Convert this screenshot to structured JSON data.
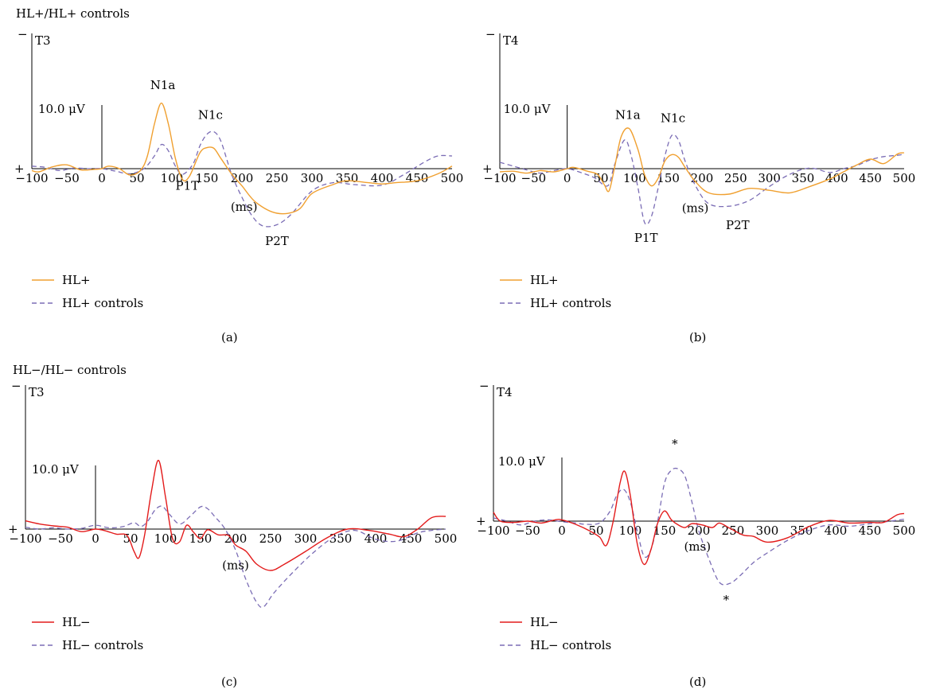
{
  "groups": [
    {
      "title": "HL+/HL+ controls"
    },
    {
      "title": "HL−/HL− controls"
    }
  ],
  "colors": {
    "hl_plus": "#f0a030",
    "hl_minus": "#e31b1b",
    "controls": "#7b6db5",
    "axis": "#000000"
  },
  "polarity": {
    "neg": "−",
    "pos": "+"
  },
  "chart_data": [
    {
      "type": "line",
      "panel_label": "(a)",
      "channel": "T3",
      "scale_label": "10.0 μV",
      "scale_value": 10,
      "x_unit": "(ms)",
      "xlim": [
        -100,
        500
      ],
      "ylim": [
        -10.5,
        24
      ],
      "y_direction": "negative up",
      "x_ticks": [
        -100,
        -50,
        0,
        50,
        100,
        150,
        200,
        250,
        300,
        350,
        400,
        450,
        500
      ],
      "x_tick_labels": [
        "−100",
        "−50",
        "0",
        "50",
        "100",
        "150",
        "200",
        "250",
        "300",
        "350",
        "400",
        "450",
        "500"
      ],
      "legend": {
        "placement": "bottom-left"
      },
      "series": [
        {
          "name": "HL+",
          "style": "solid",
          "x": [
            -100,
            -90,
            -70,
            -50,
            -30,
            -10,
            0,
            10,
            25,
            40,
            55,
            65,
            75,
            85,
            95,
            105,
            115,
            125,
            140,
            150,
            160,
            170,
            185,
            200,
            220,
            250,
            280,
            300,
            330,
            350,
            380,
            400,
            420,
            450,
            480,
            500
          ],
          "y": [
            -0.3,
            -0.5,
            0.3,
            0.6,
            -0.2,
            -0.1,
            0,
            0.4,
            0,
            -1,
            -0.3,
            2,
            7,
            10.3,
            7,
            1.6,
            -1.7,
            -1.2,
            2.5,
            3.3,
            3.2,
            1.6,
            -0.8,
            -2.7,
            -5.3,
            -7,
            -6.5,
            -3.9,
            -2.5,
            -1.9,
            -2.2,
            -2.4,
            -2.2,
            -1.9,
            -0.8,
            0.4
          ]
        },
        {
          "name": "HL+ controls",
          "style": "dashed",
          "x": [
            -100,
            -80,
            -60,
            -40,
            -20,
            0,
            20,
            40,
            60,
            75,
            85,
            95,
            105,
            115,
            130,
            140,
            150,
            160,
            170,
            185,
            200,
            215,
            230,
            250,
            270,
            300,
            330,
            360,
            400,
            430,
            460,
            480,
            500
          ],
          "y": [
            0.4,
            0.2,
            -0.3,
            0.1,
            0,
            0,
            -0.4,
            -0.8,
            0,
            2,
            3.8,
            2.8,
            0.4,
            -0.9,
            0.7,
            3.6,
            5.4,
            5.8,
            4.3,
            -0.8,
            -4.5,
            -7.5,
            -9,
            -8.8,
            -7.2,
            -3.5,
            -2.2,
            -2.5,
            -2.6,
            -1,
            1,
            2,
            2
          ]
        }
      ],
      "annotations": [
        {
          "text": "N1a",
          "x": 87,
          "y": 12.5
        },
        {
          "text": "N1c",
          "x": 155,
          "y": 7.8
        },
        {
          "text": "P1T",
          "x": 122,
          "y": -3.3
        },
        {
          "text": "(ms)",
          "x": 203,
          "y": -6.6
        },
        {
          "text": "P2T",
          "x": 250,
          "y": -12
        }
      ]
    },
    {
      "type": "line",
      "panel_label": "(b)",
      "channel": "T4",
      "scale_label": "10.0 μV",
      "scale_value": 10,
      "x_unit": "(ms)",
      "xlim": [
        -100,
        500
      ],
      "ylim": [
        -10.5,
        24
      ],
      "y_direction": "negative up",
      "x_ticks": [
        -100,
        -50,
        0,
        50,
        100,
        150,
        200,
        250,
        300,
        350,
        400,
        450,
        500
      ],
      "x_tick_labels": [
        "−100",
        "−50",
        "0",
        "50",
        "100",
        "150",
        "200",
        "250",
        "300",
        "350",
        "400",
        "450",
        "500"
      ],
      "legend": {
        "placement": "bottom-left"
      },
      "series": [
        {
          "name": "HL+",
          "style": "solid",
          "x": [
            -100,
            -80,
            -60,
            -40,
            -20,
            0,
            10,
            30,
            45,
            55,
            62,
            70,
            80,
            92,
            105,
            115,
            125,
            135,
            145,
            155,
            165,
            175,
            190,
            210,
            240,
            270,
            300,
            330,
            360,
            390,
            410,
            430,
            450,
            470,
            490,
            500
          ],
          "y": [
            -0.5,
            -0.4,
            -0.7,
            -0.3,
            -0.5,
            0,
            0.2,
            -0.4,
            -0.9,
            -2.5,
            -3.5,
            0,
            5,
            6.3,
            3,
            -1,
            -2.7,
            -1.5,
            1.2,
            2.2,
            1.8,
            0.2,
            -2,
            -3.8,
            -4,
            -3.1,
            -3.4,
            -3.8,
            -2.8,
            -1.6,
            -0.5,
            0.6,
            1.5,
            0.8,
            2.3,
            2.5
          ]
        },
        {
          "name": "HL+ controls",
          "style": "dashed",
          "x": [
            -100,
            -80,
            -60,
            -40,
            -20,
            0,
            20,
            40,
            60,
            70,
            85,
            95,
            105,
            115,
            125,
            135,
            145,
            155,
            165,
            175,
            190,
            210,
            240,
            270,
            300,
            330,
            360,
            390,
            410,
            430,
            450,
            470,
            490,
            500
          ],
          "y": [
            1,
            0.4,
            -0.2,
            -0.7,
            -0.3,
            0,
            -0.6,
            -1.4,
            -2.7,
            0.5,
            4.5,
            2,
            -3,
            -8.5,
            -7.5,
            -3,
            2,
            5.2,
            4.5,
            1.2,
            -2.6,
            -5.5,
            -5.9,
            -5,
            -2.8,
            -0.9,
            0.1,
            -0.6,
            0,
            0.5,
            1.4,
            1.9,
            2.1,
            2.3
          ]
        }
      ],
      "annotations": [
        {
          "text": "N1a",
          "x": 90,
          "y": 7.8
        },
        {
          "text": "N1c",
          "x": 157,
          "y": 7.3
        },
        {
          "text": "P1T",
          "x": 117,
          "y": -11.5
        },
        {
          "text": "(ms)",
          "x": 190,
          "y": -6.8
        },
        {
          "text": "P2T",
          "x": 253,
          "y": -9.5
        }
      ]
    },
    {
      "type": "line",
      "panel_label": "(c)",
      "channel": "T3",
      "scale_label": "10.0 μV",
      "scale_value": 10,
      "x_unit": "(ms)",
      "xlim": [
        -100,
        500
      ],
      "ylim": [
        -16,
        19.5
      ],
      "y_direction": "negative up",
      "x_ticks": [
        -100,
        -50,
        0,
        50,
        100,
        150,
        200,
        250,
        300,
        350,
        400,
        450,
        500
      ],
      "x_tick_labels": [
        "−100",
        "−50",
        "0",
        "50",
        "100",
        "150",
        "200",
        "250",
        "300",
        "350",
        "400",
        "450",
        "500"
      ],
      "legend": {
        "placement": "bottom-left"
      },
      "series": [
        {
          "name": "HL−",
          "style": "solid",
          "x": [
            -100,
            -80,
            -60,
            -40,
            -20,
            0,
            15,
            30,
            45,
            55,
            62,
            70,
            80,
            90,
            100,
            110,
            120,
            130,
            140,
            150,
            160,
            175,
            190,
            200,
            215,
            230,
            250,
            270,
            300,
            330,
            360,
            390,
            420,
            440,
            460,
            480,
            500
          ],
          "y": [
            1.3,
            0.8,
            0.5,
            0.3,
            -0.4,
            0,
            -0.3,
            -0.8,
            -1,
            -3.5,
            -4.5,
            -1,
            6,
            10.8,
            5,
            -1.5,
            -2,
            0.6,
            -0.5,
            -1.5,
            -0.1,
            -0.9,
            -1,
            -2.5,
            -3.5,
            -5.5,
            -6.5,
            -5.5,
            -3.5,
            -1.4,
            0,
            -0.2,
            -0.8,
            -1.2,
            0,
            1.8,
            2
          ]
        },
        {
          "name": "HL− controls",
          "style": "dashed",
          "x": [
            -100,
            -80,
            -60,
            -40,
            -20,
            0,
            20,
            40,
            55,
            65,
            75,
            85,
            95,
            105,
            120,
            135,
            150,
            160,
            170,
            185,
            200,
            215,
            230,
            240,
            255,
            280,
            310,
            340,
            370,
            400,
            430,
            460,
            480,
            500
          ],
          "y": [
            0.3,
            0,
            0.2,
            0,
            0.1,
            0.6,
            0.2,
            0.4,
            1,
            0.4,
            1.3,
            3,
            3.6,
            2.4,
            0.8,
            2,
            3.5,
            3.2,
            2,
            0,
            -3.3,
            -8,
            -11.5,
            -12.2,
            -10,
            -7,
            -3.8,
            -1.3,
            -0.2,
            -1.6,
            -1.9,
            -0.6,
            -0.2,
            0
          ]
        }
      ],
      "annotations": [
        {
          "text": "(ms)",
          "x": 200,
          "y": -6.3
        }
      ]
    },
    {
      "type": "line",
      "panel_label": "(d)",
      "channel": "T4",
      "scale_label": "10.0 μV",
      "scale_value": 10,
      "x_unit": "(ms)",
      "xlim": [
        -100,
        500
      ],
      "ylim": [
        -16,
        19.5
      ],
      "y_direction": "negative up",
      "x_ticks": [
        -100,
        -50,
        0,
        50,
        100,
        150,
        200,
        250,
        300,
        350,
        400,
        450,
        500
      ],
      "x_tick_labels": [
        "−100",
        "−50",
        "0",
        "50",
        "100",
        "150",
        "200",
        "250",
        "300",
        "350",
        "400",
        "450",
        "500"
      ],
      "legend": {
        "placement": "bottom-left"
      },
      "series": [
        {
          "name": "HL−",
          "style": "solid",
          "x": [
            -100,
            -90,
            -70,
            -50,
            -30,
            -10,
            0,
            20,
            40,
            55,
            65,
            75,
            85,
            92,
            100,
            110,
            120,
            130,
            140,
            150,
            160,
            170,
            180,
            190,
            205,
            220,
            230,
            245,
            265,
            280,
            300,
            330,
            360,
            390,
            420,
            450,
            470,
            490,
            500
          ],
          "y": [
            1.4,
            0,
            -0.2,
            0,
            -0.3,
            0.2,
            0.2,
            -0.5,
            -1.5,
            -2.5,
            -3.8,
            0,
            6,
            7.8,
            4,
            -3.5,
            -6.8,
            -4.5,
            -0.3,
            1.6,
            0.2,
            -0.6,
            -1,
            -0.4,
            -0.6,
            -1,
            -0.3,
            -1.1,
            -2.2,
            -2.4,
            -3.3,
            -2.6,
            -0.9,
            0.1,
            -0.3,
            -0.2,
            -0.2,
            1,
            1.2
          ]
        },
        {
          "name": "HL− controls",
          "style": "dashed",
          "x": [
            -100,
            -80,
            -60,
            -40,
            -20,
            0,
            20,
            35,
            55,
            70,
            80,
            90,
            100,
            110,
            120,
            130,
            140,
            150,
            160,
            170,
            180,
            190,
            200,
            215,
            230,
            245,
            260,
            280,
            300,
            330,
            360,
            390,
            420,
            450,
            480,
            500
          ],
          "y": [
            0.5,
            0,
            -0.6,
            0,
            0.2,
            -0.1,
            -0.3,
            -0.5,
            -0.3,
            1.5,
            4,
            5,
            3,
            -1.5,
            -5.5,
            -4.5,
            0,
            6,
            8,
            8.2,
            7,
            3,
            -1.5,
            -6,
            -9.6,
            -9.8,
            -8.6,
            -6.5,
            -5,
            -3,
            -1.5,
            -0.6,
            -0.8,
            -0.4,
            0,
            0.3
          ]
        }
      ],
      "annotations": [
        {
          "text": "*",
          "x": 165,
          "y": 11.5
        },
        {
          "text": "*",
          "x": 240,
          "y": -13
        },
        {
          "text": "(ms)",
          "x": 198,
          "y": -4.6
        }
      ]
    }
  ]
}
